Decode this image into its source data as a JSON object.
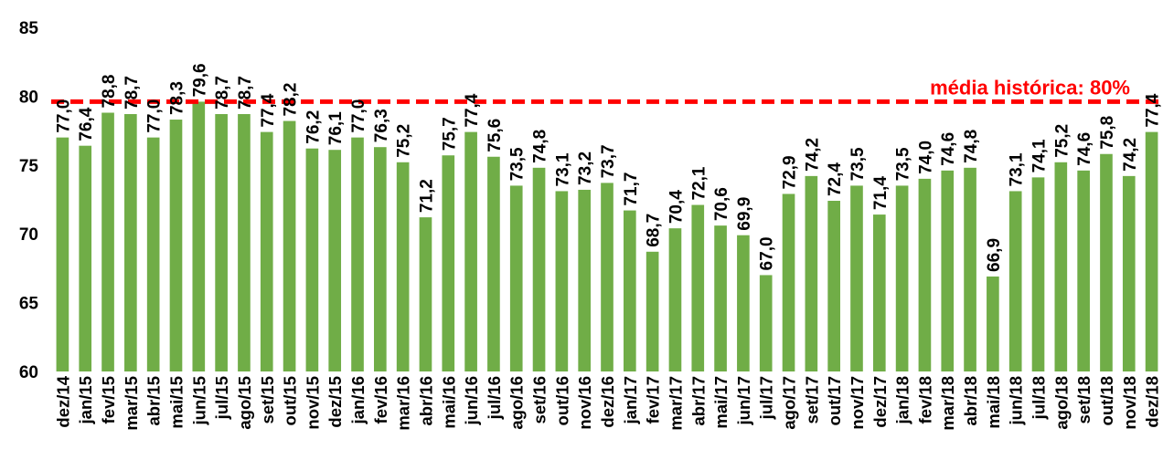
{
  "chart_data": {
    "type": "bar",
    "ylim": [
      60,
      85
    ],
    "yticks": [
      60,
      65,
      70,
      75,
      80,
      85
    ],
    "grid": false,
    "legend": "none",
    "bar_color": "#70ad47",
    "categories": [
      "dez/14",
      "jan/15",
      "fev/15",
      "mar/15",
      "abr/15",
      "mai/15",
      "jun/15",
      "jul/15",
      "ago/15",
      "set/15",
      "out/15",
      "nov/15",
      "dez/15",
      "jan/16",
      "fev/16",
      "mar/16",
      "abr/16",
      "mai/16",
      "jun/16",
      "jul/16",
      "ago/16",
      "set/16",
      "out/16",
      "nov/16",
      "dez/16",
      "jan/17",
      "fev/17",
      "mar/17",
      "abr/17",
      "mai/17",
      "jun/17",
      "jul/17",
      "ago/17",
      "set/17",
      "out/17",
      "nov/17",
      "dez/17",
      "jan/18",
      "fev/18",
      "mar/18",
      "abr/18",
      "mai/18",
      "jun/18",
      "jul/18",
      "ago/18",
      "set/18",
      "out/18",
      "nov/18",
      "dez/18"
    ],
    "values": [
      77.0,
      76.4,
      78.8,
      78.7,
      77.0,
      78.3,
      79.6,
      78.7,
      78.7,
      77.4,
      78.2,
      76.2,
      76.1,
      77.0,
      76.3,
      75.2,
      71.2,
      75.7,
      77.4,
      75.6,
      73.5,
      74.8,
      73.1,
      73.2,
      73.7,
      71.7,
      68.7,
      70.4,
      72.1,
      70.6,
      69.9,
      67.0,
      72.9,
      74.2,
      72.4,
      73.5,
      71.4,
      73.5,
      74.0,
      74.6,
      74.8,
      66.9,
      73.1,
      74.1,
      75.2,
      74.6,
      75.8,
      74.2,
      77.4
    ],
    "data_labels": [
      "77,0",
      "76,4",
      "78,8",
      "78,7",
      "77,0",
      "78,3",
      "79,6",
      "78,7",
      "78,7",
      "77,4",
      "78,2",
      "76,2",
      "76,1",
      "77,0",
      "76,3",
      "75,2",
      "71,2",
      "75,7",
      "77,4",
      "75,6",
      "73,5",
      "74,8",
      "73,1",
      "73,2",
      "73,7",
      "71,7",
      "68,7",
      "70,4",
      "72,1",
      "70,6",
      "69,9",
      "67,0",
      "72,9",
      "74,2",
      "72,4",
      "73,5",
      "71,4",
      "73,5",
      "74,0",
      "74,6",
      "74,8",
      "66,9",
      "73,1",
      "74,1",
      "75,2",
      "74,6",
      "75,8",
      "74,2",
      "77,4"
    ],
    "reference_line": {
      "value": 79.6,
      "label": "média histórica: 80%",
      "color": "#ff0000",
      "style": "dashed"
    }
  }
}
